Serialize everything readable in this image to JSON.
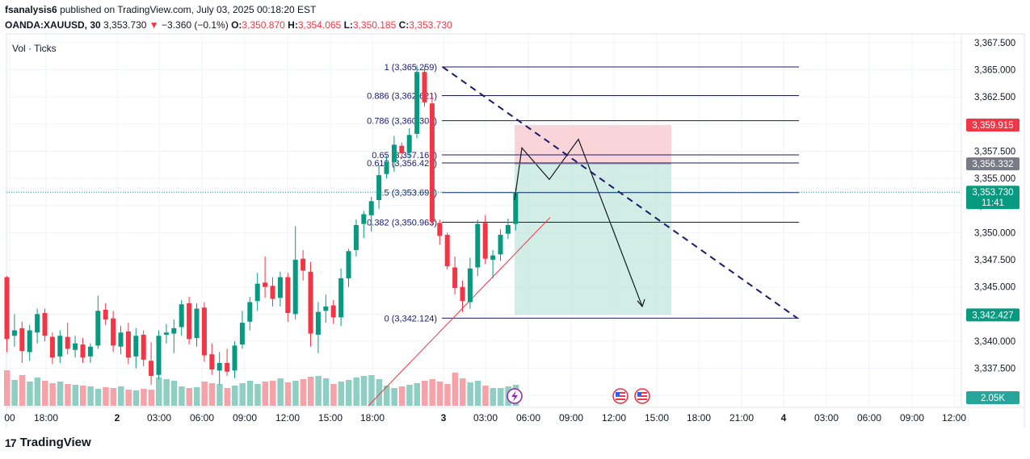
{
  "header": {
    "author": "fsanalysis6",
    "published_text": "published on TradingView.com, July 03, 2025 00:18:20 EST",
    "symbol": "OANDA:XAUUSD, 30",
    "last": "3,353.730",
    "change": "−3.360 (−0.1%)",
    "o_label": "O:",
    "o_value": "3,350.870",
    "h_label": "H:",
    "h_value": "3,354.065",
    "l_label": "L:",
    "l_value": "3,350.185",
    "c_label": "C:",
    "c_value": "3,353.730"
  },
  "volume_label": "Vol · Ticks",
  "footer": {
    "brand": "TradingView",
    "logo": "17"
  },
  "price_badges": {
    "top": "3,359.915",
    "mid": "3,356.332",
    "current": "3,353.730",
    "countdown": "11:41",
    "bottom": "3,342.427",
    "volume": "2.05K"
  },
  "colors": {
    "up": "#089981",
    "down": "#f23645",
    "vol_up": "#8fcfc3",
    "vol_down": "#f5a3a9",
    "fib_line": "#1a1a6b",
    "stop_zone": "#f7c9cf",
    "target_zone": "#b3e1d6"
  },
  "icons": [
    "lightning-icon",
    "us-flag-icon",
    "us-flag-icon"
  ],
  "chart_data": {
    "type": "candlestick",
    "instrument": "OANDA:XAUUSD",
    "interval": "30",
    "y_ticks": [
      "3,367.500",
      "3,365.000",
      "3,362.500",
      "3,360.000",
      "3,357.500",
      "3,355.000",
      "3,352.500",
      "3,350.000",
      "3,347.500",
      "3,345.000",
      "3,342.500",
      "3,340.000",
      "3,337.500",
      "3,335.000"
    ],
    "x_ticks": [
      "00",
      "18:00",
      "2",
      "03:00",
      "06:00",
      "09:00",
      "12:00",
      "15:00",
      "18:00",
      "3",
      "03:00",
      "06:00",
      "09:00",
      "12:00",
      "15:00",
      "18:00",
      "21:00",
      "4",
      "03:00",
      "06:00",
      "09:00",
      "12:00"
    ],
    "fib_levels": [
      {
        "label": "1 (3,365.259)",
        "price": 3365.259
      },
      {
        "label": "0.886 (3,362.621)",
        "price": 3362.621
      },
      {
        "label": "0.786 (3,360.308)",
        "price": 3360.308
      },
      {
        "label": "0.65 (3,357.163)",
        "price": 3357.163
      },
      {
        "label": "0.618 (3,356.421)",
        "price": 3356.421
      },
      {
        "label": "0.5 (3,353.692)",
        "price": 3353.692
      },
      {
        "label": "0.382 (3,350.963)",
        "price": 3350.963
      },
      {
        "label": "0 (3,342.124)",
        "price": 3342.124
      }
    ],
    "candles": [
      {
        "o": 3345.9,
        "h": 3346.0,
        "l": 3339.0,
        "c": 3340.2
      },
      {
        "o": 3340.5,
        "h": 3342.5,
        "l": 3339.5,
        "c": 3341.0
      },
      {
        "o": 3341.2,
        "h": 3341.8,
        "l": 3338.0,
        "c": 3339.1
      },
      {
        "o": 3339.0,
        "h": 3341.5,
        "l": 3338.2,
        "c": 3341.0
      },
      {
        "o": 3340.8,
        "h": 3343.0,
        "l": 3339.8,
        "c": 3342.5
      },
      {
        "o": 3342.6,
        "h": 3343.0,
        "l": 3340.0,
        "c": 3340.5
      },
      {
        "o": 3340.4,
        "h": 3340.8,
        "l": 3337.9,
        "c": 3338.5
      },
      {
        "o": 3338.6,
        "h": 3341.0,
        "l": 3338.0,
        "c": 3340.5
      },
      {
        "o": 3340.4,
        "h": 3341.7,
        "l": 3338.8,
        "c": 3339.3
      },
      {
        "o": 3339.2,
        "h": 3340.5,
        "l": 3338.5,
        "c": 3339.8
      },
      {
        "o": 3339.7,
        "h": 3340.3,
        "l": 3338.0,
        "c": 3338.5
      },
      {
        "o": 3338.6,
        "h": 3339.8,
        "l": 3338.0,
        "c": 3339.5
      },
      {
        "o": 3339.6,
        "h": 3344.2,
        "l": 3339.3,
        "c": 3342.8
      },
      {
        "o": 3342.9,
        "h": 3343.5,
        "l": 3341.5,
        "c": 3342.0
      },
      {
        "o": 3342.1,
        "h": 3342.8,
        "l": 3339.0,
        "c": 3339.6
      },
      {
        "o": 3339.5,
        "h": 3341.4,
        "l": 3338.8,
        "c": 3340.8
      },
      {
        "o": 3340.9,
        "h": 3341.7,
        "l": 3337.9,
        "c": 3338.5
      },
      {
        "o": 3338.6,
        "h": 3341.2,
        "l": 3337.5,
        "c": 3340.5
      },
      {
        "o": 3340.6,
        "h": 3341.0,
        "l": 3337.7,
        "c": 3338.3
      },
      {
        "o": 3338.2,
        "h": 3339.9,
        "l": 3336.0,
        "c": 3336.8
      },
      {
        "o": 3336.9,
        "h": 3341.0,
        "l": 3336.5,
        "c": 3340.5
      },
      {
        "o": 3340.6,
        "h": 3341.6,
        "l": 3339.8,
        "c": 3340.8
      },
      {
        "o": 3340.7,
        "h": 3342.0,
        "l": 3338.9,
        "c": 3341.2
      },
      {
        "o": 3341.3,
        "h": 3343.8,
        "l": 3340.5,
        "c": 3343.4
      },
      {
        "o": 3343.5,
        "h": 3344.1,
        "l": 3339.7,
        "c": 3340.2
      },
      {
        "o": 3340.3,
        "h": 3343.5,
        "l": 3339.5,
        "c": 3343.0
      },
      {
        "o": 3343.1,
        "h": 3343.6,
        "l": 3338.1,
        "c": 3338.7
      },
      {
        "o": 3338.8,
        "h": 3339.8,
        "l": 3336.9,
        "c": 3337.4
      },
      {
        "o": 3337.3,
        "h": 3339.0,
        "l": 3336.0,
        "c": 3338.0
      },
      {
        "o": 3338.0,
        "h": 3339.3,
        "l": 3336.8,
        "c": 3337.2
      },
      {
        "o": 3337.3,
        "h": 3340.0,
        "l": 3336.6,
        "c": 3339.6
      },
      {
        "o": 3339.7,
        "h": 3342.8,
        "l": 3339.3,
        "c": 3341.7
      },
      {
        "o": 3341.8,
        "h": 3344.1,
        "l": 3341.0,
        "c": 3343.6
      },
      {
        "o": 3343.7,
        "h": 3346.3,
        "l": 3342.8,
        "c": 3345.3
      },
      {
        "o": 3345.4,
        "h": 3347.8,
        "l": 3344.0,
        "c": 3345.0
      },
      {
        "o": 3345.1,
        "h": 3345.9,
        "l": 3343.2,
        "c": 3343.9
      },
      {
        "o": 3344.0,
        "h": 3346.4,
        "l": 3343.2,
        "c": 3345.9
      },
      {
        "o": 3345.9,
        "h": 3346.3,
        "l": 3341.8,
        "c": 3342.6
      },
      {
        "o": 3342.5,
        "h": 3350.6,
        "l": 3342.0,
        "c": 3347.5
      },
      {
        "o": 3347.6,
        "h": 3348.4,
        "l": 3345.6,
        "c": 3346.5
      },
      {
        "o": 3346.4,
        "h": 3347.3,
        "l": 3339.5,
        "c": 3340.7
      },
      {
        "o": 3340.6,
        "h": 3343.6,
        "l": 3338.9,
        "c": 3342.7
      },
      {
        "o": 3342.8,
        "h": 3344.3,
        "l": 3341.7,
        "c": 3343.2
      },
      {
        "o": 3343.3,
        "h": 3343.8,
        "l": 3341.6,
        "c": 3342.2
      },
      {
        "o": 3342.2,
        "h": 3346.7,
        "l": 3341.4,
        "c": 3345.8
      },
      {
        "o": 3345.8,
        "h": 3348.5,
        "l": 3345.0,
        "c": 3348.3
      },
      {
        "o": 3348.4,
        "h": 3351.2,
        "l": 3347.8,
        "c": 3350.7
      },
      {
        "o": 3350.8,
        "h": 3352.0,
        "l": 3349.5,
        "c": 3351.7
      },
      {
        "o": 3351.6,
        "h": 3353.3,
        "l": 3350.1,
        "c": 3352.9
      },
      {
        "o": 3353.0,
        "h": 3356.2,
        "l": 3352.2,
        "c": 3355.3
      },
      {
        "o": 3355.4,
        "h": 3357.1,
        "l": 3355.0,
        "c": 3356.5
      },
      {
        "o": 3356.5,
        "h": 3358.9,
        "l": 3355.6,
        "c": 3358.1
      },
      {
        "o": 3358.0,
        "h": 3358.3,
        "l": 3356.8,
        "c": 3357.3
      },
      {
        "o": 3357.4,
        "h": 3359.6,
        "l": 3356.9,
        "c": 3359.0
      },
      {
        "o": 3359.1,
        "h": 3365.4,
        "l": 3358.7,
        "c": 3364.8
      },
      {
        "o": 3364.8,
        "h": 3365.3,
        "l": 3361.6,
        "c": 3362.0
      },
      {
        "o": 3361.9,
        "h": 3362.8,
        "l": 3350.6,
        "c": 3351.0
      },
      {
        "o": 3350.9,
        "h": 3351.2,
        "l": 3348.9,
        "c": 3349.7
      },
      {
        "o": 3349.8,
        "h": 3350.0,
        "l": 3346.6,
        "c": 3346.9
      },
      {
        "o": 3346.8,
        "h": 3347.8,
        "l": 3344.3,
        "c": 3344.9
      },
      {
        "o": 3345.0,
        "h": 3345.6,
        "l": 3342.7,
        "c": 3343.7
      },
      {
        "o": 3343.6,
        "h": 3347.7,
        "l": 3343.0,
        "c": 3346.7
      },
      {
        "o": 3346.8,
        "h": 3351.2,
        "l": 3346.0,
        "c": 3350.8
      },
      {
        "o": 3350.9,
        "h": 3351.6,
        "l": 3347.1,
        "c": 3347.6
      },
      {
        "o": 3347.5,
        "h": 3348.4,
        "l": 3345.8,
        "c": 3347.9
      },
      {
        "o": 3348.0,
        "h": 3350.3,
        "l": 3347.4,
        "c": 3349.8
      },
      {
        "o": 3349.9,
        "h": 3351.3,
        "l": 3349.4,
        "c": 3350.7
      },
      {
        "o": 3350.8,
        "h": 3354.1,
        "l": 3350.2,
        "c": 3353.7
      }
    ],
    "volume": [
      44,
      32,
      38,
      30,
      35,
      31,
      28,
      30,
      27,
      26,
      25,
      24,
      21,
      23,
      22,
      24,
      20,
      19,
      21,
      20,
      35,
      33,
      31,
      24,
      22,
      23,
      30,
      28,
      27,
      22,
      25,
      28,
      31,
      27,
      30,
      31,
      34,
      29,
      31,
      33,
      36,
      37,
      34,
      27,
      30,
      32,
      35,
      37,
      38,
      33,
      25,
      22,
      24,
      26,
      28,
      31,
      33,
      30,
      27,
      41,
      34,
      29,
      31,
      25,
      22,
      22,
      24,
      26
    ],
    "projection_path": [
      [
        3364.0,
        0
      ],
      [
        3357.8,
        1
      ],
      [
        3354.9,
        2
      ],
      [
        3358.6,
        3
      ],
      [
        3343.2,
        4
      ]
    ],
    "trade_zone": {
      "entry": 3356.332,
      "stop": 3359.915,
      "target": 3342.427
    },
    "trendline_dashed": {
      "from": 3365.259,
      "to": 3342.124
    },
    "trendline_support": {
      "from": 3335.3,
      "to": 3351.4
    }
  }
}
